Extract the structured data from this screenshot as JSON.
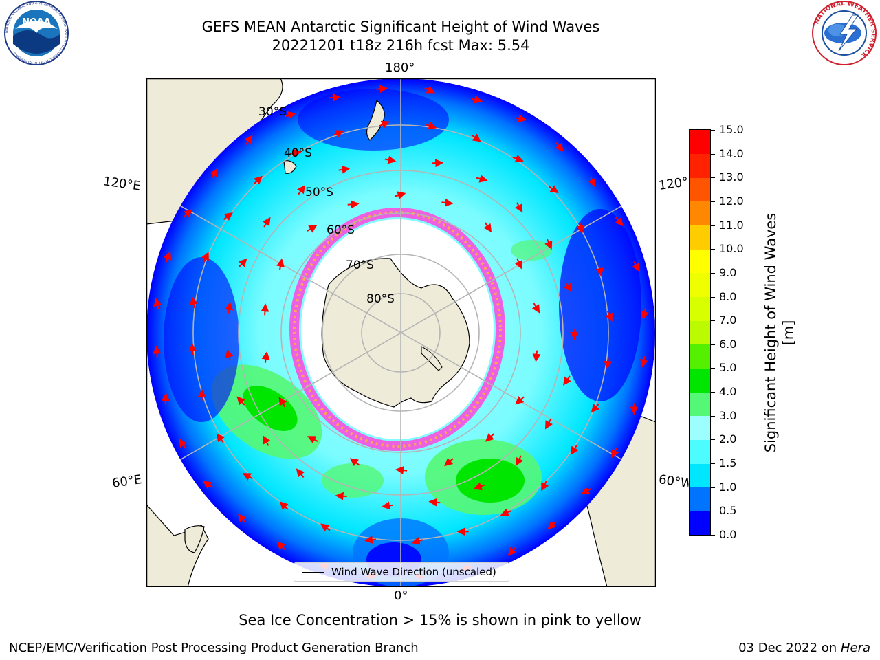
{
  "title": {
    "line1": "GEFS MEAN Antarctic Significant Height of Wind Waves",
    "line2": "20221201 t18z 216h fcst   Max: 5.54"
  },
  "logos": {
    "noaa": "NOAA",
    "noaa_ring": "NATIONAL OCEANIC AND ATMOSPHERIC ADMINISTRATION · U.S. DEPARTMENT OF COMMERCE",
    "nws_ring": "NATIONAL WEATHER SERVICE"
  },
  "map": {
    "projection": "south polar stereographic",
    "lon_labels": {
      "top": "180°",
      "bottom": "0°",
      "left_upper": "120°E",
      "left_lower": "60°E",
      "right_upper": "120°",
      "right_lower": "60°W"
    },
    "lat_labels": [
      "30°S",
      "40°S",
      "50°S",
      "60°S",
      "70°S",
      "80°S"
    ],
    "colors": {
      "land": "#efebd9",
      "ice": "#ffffff",
      "arrow": "#ff0000",
      "grid": "#b5b5b5"
    }
  },
  "legend": {
    "label": "Wind Wave Direction (unscaled)"
  },
  "colorbar": {
    "label": "Significant Height of Wind Waves [m]",
    "ticks": [
      "0.0",
      "0.5",
      "1.0",
      "1.5",
      "2.0",
      "3.0",
      "4.0",
      "5.0",
      "6.0",
      "7.0",
      "8.0",
      "9.0",
      "10.0",
      "11.0",
      "12.0",
      "13.0",
      "14.0",
      "15.0"
    ],
    "colors": [
      "#0000ff",
      "#0073ff",
      "#00e6ff",
      "#4dfcff",
      "#9dfefe",
      "#55f776",
      "#00e600",
      "#55f000",
      "#bbfa00",
      "#d7ff00",
      "#f0ff00",
      "#ffff00",
      "#ffcc00",
      "#ff8800",
      "#ff5500",
      "#ff2200",
      "#ff0000"
    ]
  },
  "footer": {
    "sea_ice_note": "Sea Ice Concentration > 15% is shown in pink to yellow",
    "credit_left": "NCEP/EMC/Verification Post Processing Product Generation Branch",
    "date": "03 Dec 2022 on",
    "machine": "Hera"
  }
}
